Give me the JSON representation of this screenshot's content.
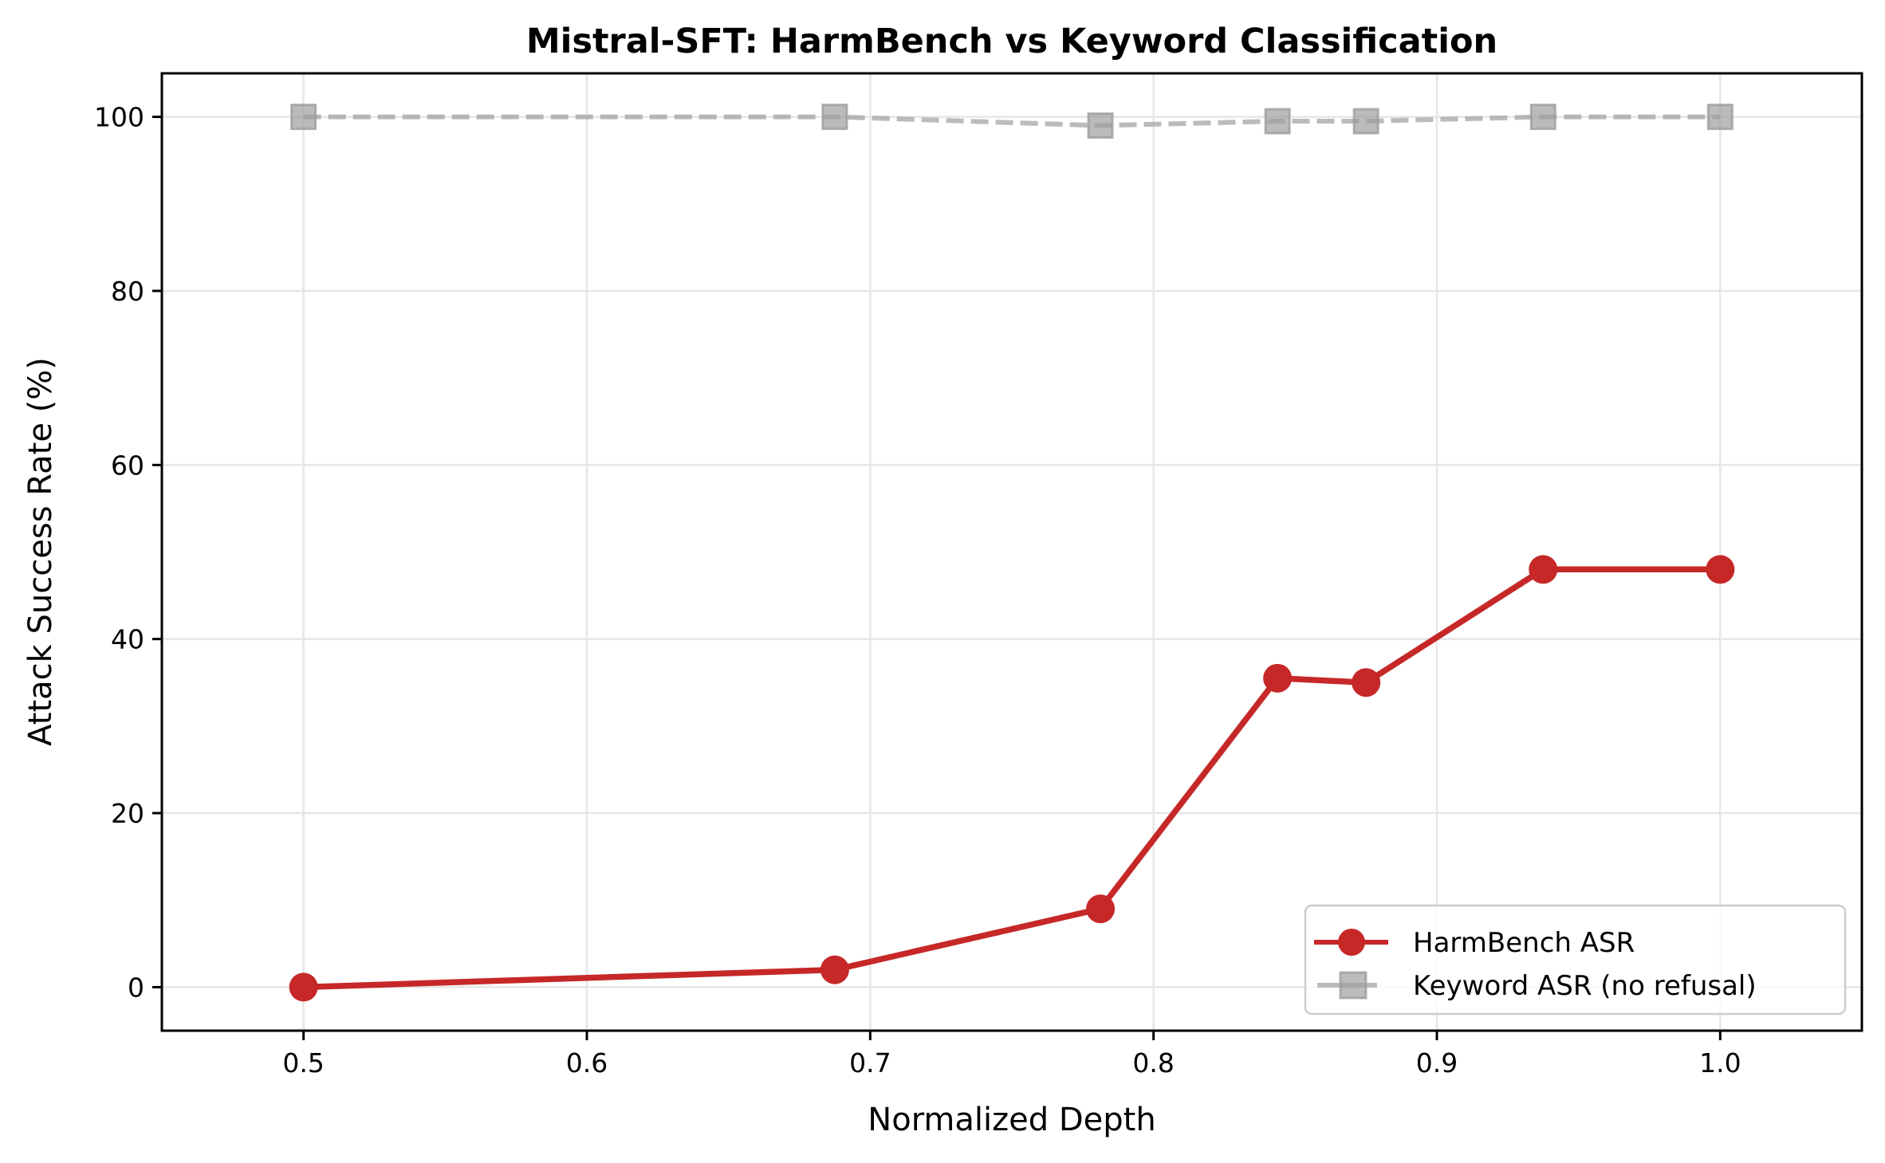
{
  "chart_data": {
    "type": "line",
    "title": "Mistral-SFT: HarmBench vs Keyword Classification",
    "xlabel": "Normalized Depth",
    "ylabel": "Attack Success Rate (%)",
    "xlim": [
      0.45,
      1.05
    ],
    "ylim": [
      -5,
      105
    ],
    "xticks": [
      0.5,
      0.6,
      0.7,
      0.8,
      0.9,
      1.0
    ],
    "xtick_labels": [
      "0.5",
      "0.6",
      "0.7",
      "0.8",
      "0.9",
      "1.0"
    ],
    "yticks": [
      0,
      20,
      40,
      60,
      80,
      100
    ],
    "ytick_labels": [
      "0",
      "20",
      "40",
      "60",
      "80",
      "100"
    ],
    "grid": true,
    "legend_position": "lower right",
    "x": [
      0.5,
      0.6875,
      0.78125,
      0.84375,
      0.875,
      0.9375,
      1.0
    ],
    "series": [
      {
        "name": "HarmBench ASR",
        "values": [
          0.0,
          2.0,
          9.0,
          35.5,
          35.0,
          48.0,
          48.0
        ],
        "color": "#c62828",
        "line_style": "solid",
        "marker": "circle"
      },
      {
        "name": "Keyword ASR (no refusal)",
        "values": [
          100.0,
          100.0,
          99.0,
          99.5,
          99.5,
          100.0,
          100.0
        ],
        "color": "#9e9e9e",
        "line_style": "dashed",
        "marker": "square"
      }
    ]
  },
  "legend": {
    "items": [
      {
        "label": "HarmBench ASR"
      },
      {
        "label": "Keyword ASR (no refusal)"
      }
    ]
  }
}
